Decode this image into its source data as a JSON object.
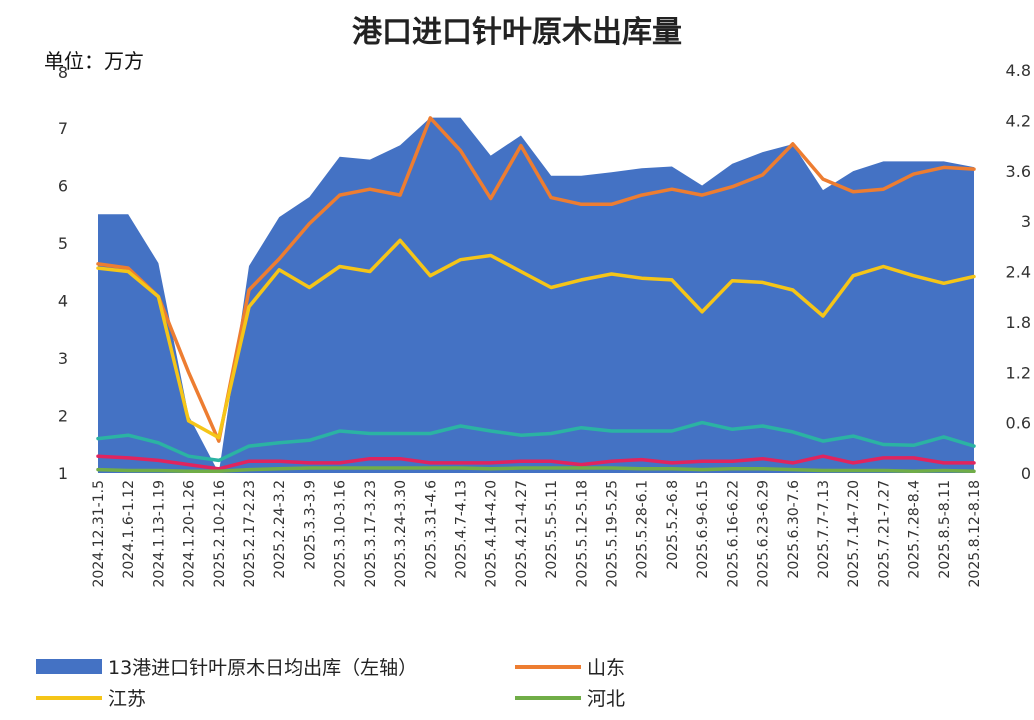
{
  "chart_data": {
    "type": "area",
    "title": "港口进口针叶原木出库量",
    "unit_label": "单位：万方",
    "left_axis": {
      "ylim": [
        1,
        7
      ],
      "ticks": [
        "1",
        "2",
        "3",
        "4",
        "5",
        "6",
        "7"
      ],
      "top_tick": "8"
    },
    "right_axis": {
      "ylim": [
        0,
        4.8
      ],
      "ticks": [
        "0",
        "0.6",
        "1.2",
        "1.8",
        "2.4",
        "3",
        "3.6",
        "4.2",
        "4.8"
      ]
    },
    "categories": [
      "2024.12.31-1.5",
      "2024.1.6-1.12",
      "2024.1.13-1.19",
      "2024.1.20-1.26",
      "2025.2.10-2.16",
      "2025.2.17-2.23",
      "2025.2.24-3.2",
      "2025.3.3-3.9",
      "2025.3.10-3.16",
      "2025.3.17-3.23",
      "2025.3.24-3.30",
      "2025.3.31-4.6",
      "2025.4.7-4.13",
      "2025.4.14-4.20",
      "2025.4.21-4.27",
      "2025.5.5-5.11",
      "2025.5.12-5.18",
      "2025.5.19-5.25",
      "2025.5.28-6.1",
      "2025.5.2-6.8",
      "2025.6.9-6.15",
      "2025.6.16-6.22",
      "2025.6.23-6.29",
      "2025.6.30-7.6",
      "2025.7.7-7.13",
      "2025.7.14-7.20",
      "2025.7.21-7.27",
      "2025.7.28-8.4",
      "2025.8.5-8.11",
      "2025.8.12-8.18"
    ],
    "series": [
      {
        "name": "13港进口针叶原木日均出库（左轴）",
        "axis": "left",
        "kind": "area",
        "color": "#4472c4",
        "values": [
          5.5,
          5.5,
          4.65,
          2.0,
          1.0,
          4.6,
          5.45,
          5.8,
          6.5,
          6.45,
          6.7,
          7.18,
          7.18,
          6.52,
          6.87,
          6.17,
          6.17,
          6.23,
          6.3,
          6.33,
          6.0,
          6.38,
          6.58,
          6.72,
          5.92,
          6.25,
          6.42,
          6.42,
          6.42,
          6.32
        ]
      },
      {
        "name": "山东",
        "axis": "right",
        "kind": "line",
        "color": "#ed7d31",
        "values": [
          2.49,
          2.44,
          2.1,
          1.2,
          0.38,
          2.18,
          2.55,
          2.97,
          3.31,
          3.38,
          3.31,
          4.23,
          3.84,
          3.27,
          3.9,
          3.28,
          3.2,
          3.2,
          3.31,
          3.38,
          3.31,
          3.41,
          3.55,
          3.92,
          3.5,
          3.35,
          3.38,
          3.56,
          3.64,
          3.62
        ]
      },
      {
        "name": "江苏",
        "axis": "right",
        "kind": "line",
        "color": "#f5c518",
        "values": [
          2.44,
          2.4,
          2.1,
          0.62,
          0.42,
          1.98,
          2.42,
          2.21,
          2.46,
          2.4,
          2.77,
          2.35,
          2.54,
          2.59,
          2.4,
          2.21,
          2.3,
          2.37,
          2.32,
          2.3,
          1.92,
          2.29,
          2.27,
          2.18,
          1.87,
          2.35,
          2.46,
          2.35,
          2.26,
          2.34
        ]
      },
      {
        "name": "",
        "axis": "right",
        "kind": "line",
        "color": "#2bb3a3",
        "values": [
          0.41,
          0.45,
          0.36,
          0.2,
          0.15,
          0.32,
          0.36,
          0.39,
          0.5,
          0.47,
          0.47,
          0.47,
          0.56,
          0.5,
          0.45,
          0.47,
          0.54,
          0.5,
          0.5,
          0.5,
          0.6,
          0.52,
          0.56,
          0.49,
          0.38,
          0.44,
          0.34,
          0.33,
          0.43,
          0.32
        ]
      },
      {
        "name": "",
        "axis": "right",
        "kind": "line",
        "color": "#e0245e",
        "values": [
          0.2,
          0.18,
          0.15,
          0.1,
          0.05,
          0.14,
          0.14,
          0.12,
          0.12,
          0.17,
          0.17,
          0.12,
          0.12,
          0.12,
          0.14,
          0.14,
          0.1,
          0.14,
          0.16,
          0.12,
          0.14,
          0.14,
          0.17,
          0.12,
          0.2,
          0.12,
          0.18,
          0.18,
          0.12,
          0.12
        ]
      },
      {
        "name": "河北",
        "axis": "right",
        "kind": "line",
        "color": "#70ad47",
        "values": [
          0.04,
          0.03,
          0.03,
          0.02,
          0.02,
          0.04,
          0.05,
          0.06,
          0.06,
          0.06,
          0.06,
          0.06,
          0.06,
          0.05,
          0.06,
          0.06,
          0.06,
          0.06,
          0.05,
          0.05,
          0.04,
          0.05,
          0.05,
          0.04,
          0.03,
          0.03,
          0.03,
          0.02,
          0.03,
          0.02
        ]
      }
    ],
    "legend": {
      "placement": "bottom",
      "items": [
        {
          "label": "13港进口针叶原木日均出库（左轴）",
          "color": "#4472c4",
          "shape": "rect"
        },
        {
          "label": "山东",
          "color": "#ed7d31",
          "shape": "line"
        },
        {
          "label": "江苏",
          "color": "#f5c518",
          "shape": "line"
        },
        {
          "label": "河北",
          "color": "#70ad47",
          "shape": "line"
        }
      ]
    }
  }
}
